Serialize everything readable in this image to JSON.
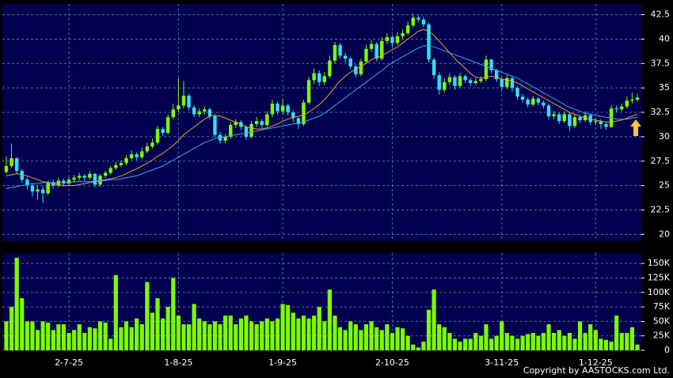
{
  "chart_data": [
    {
      "type": "candlestick",
      "categories": [
        null,
        null,
        null,
        null,
        null,
        null,
        null,
        null,
        null,
        null,
        null,
        null,
        "2-7-25",
        null,
        null,
        null,
        null,
        null,
        null,
        null,
        null,
        null,
        null,
        null,
        null,
        null,
        null,
        null,
        null,
        null,
        null,
        null,
        null,
        "1-8-25",
        null,
        null,
        null,
        null,
        null,
        null,
        null,
        null,
        null,
        null,
        null,
        null,
        null,
        null,
        null,
        null,
        null,
        null,
        null,
        "1-9-25",
        null,
        null,
        null,
        null,
        null,
        null,
        null,
        null,
        null,
        null,
        null,
        null,
        null,
        null,
        null,
        null,
        null,
        null,
        null,
        null,
        "2-10-25",
        null,
        null,
        null,
        null,
        null,
        null,
        null,
        null,
        null,
        null,
        null,
        null,
        null,
        null,
        null,
        null,
        null,
        null,
        null,
        null,
        "3-11-25",
        null,
        null,
        null,
        null,
        null,
        null,
        null,
        null,
        null,
        null,
        null,
        null,
        null,
        null,
        null,
        null,
        null,
        "1-12-25",
        null,
        null,
        null,
        null,
        null,
        null,
        null,
        null
      ],
      "open": [
        26.4,
        27.0,
        27.8,
        26.5,
        25.6,
        25.0,
        24.4,
        24.6,
        24.2,
        25.3,
        25.0,
        25.5,
        25.2,
        25.6,
        25.8,
        26.0,
        25.8,
        26.2,
        25.1,
        26.0,
        26.3,
        26.8,
        27.1,
        27.3,
        27.8,
        28.2,
        27.9,
        28.5,
        29.0,
        29.4,
        30.8,
        30.4,
        32.0,
        32.8,
        33.2,
        34.2,
        33.0,
        32.3,
        32.6,
        32.8,
        32.1,
        30.2,
        29.6,
        30.0,
        31.2,
        31.5,
        31.0,
        30.0,
        31.3,
        31.6,
        31.2,
        32.3,
        33.4,
        32.6,
        33.2,
        32.5,
        31.9,
        31.3,
        33.5,
        35.8,
        36.5,
        35.6,
        36.2,
        37.8,
        39.4,
        38.3,
        38.0,
        37.2,
        36.4,
        37.7,
        39.0,
        39.5,
        38.0,
        39.8,
        40.2,
        39.6,
        40.3,
        40.6,
        41.4,
        42.2,
        42.0,
        41.5,
        37.9,
        36.3,
        34.8,
        35.6,
        36.1,
        35.2,
        36.2,
        35.8,
        35.5,
        35.7,
        35.9,
        37.9,
        36.8,
        35.9,
        35.1,
        36.0,
        35.0,
        34.1,
        33.8,
        33.3,
        33.9,
        33.5,
        33.2,
        32.1,
        32.3,
        31.6,
        32.3,
        31.1,
        32.0,
        31.7,
        32.2,
        31.5,
        31.6,
        31.3,
        31.0,
        32.9,
        32.8,
        33.1,
        33.7,
        33.8
      ],
      "high": [
        28.0,
        29.3,
        27.9,
        26.7,
        25.9,
        25.2,
        25.0,
        24.9,
        25.5,
        25.6,
        25.8,
        25.7,
        25.9,
        26.1,
        26.3,
        26.2,
        26.5,
        26.3,
        26.2,
        26.5,
        27.0,
        27.4,
        27.6,
        28.1,
        28.6,
        28.4,
        28.9,
        29.4,
        29.8,
        31.1,
        31.0,
        32.3,
        33.4,
        36.0,
        35.7,
        34.4,
        33.2,
        32.9,
        33.1,
        33.0,
        32.3,
        30.5,
        30.3,
        31.5,
        31.8,
        31.7,
        31.2,
        31.6,
        32.0,
        31.8,
        32.6,
        33.8,
        33.6,
        33.9,
        33.4,
        32.7,
        32.0,
        33.8,
        36.1,
        37.0,
        36.8,
        36.6,
        38.3,
        39.7,
        39.6,
        38.6,
        38.2,
        37.4,
        38.0,
        39.4,
        39.9,
        39.7,
        40.2,
        40.6,
        40.4,
        40.7,
        41.0,
        41.8,
        42.6,
        42.5,
        42.3,
        41.7,
        38.1,
        36.6,
        36.0,
        36.5,
        36.3,
        36.5,
        36.4,
        36.0,
        36.0,
        36.2,
        38.3,
        38.0,
        37.0,
        36.1,
        36.3,
        36.2,
        35.2,
        34.4,
        34.0,
        34.2,
        34.1,
        33.7,
        33.4,
        32.6,
        32.5,
        32.6,
        32.5,
        32.3,
        32.2,
        32.6,
        32.4,
        31.9,
        31.8,
        31.5,
        33.2,
        33.2,
        33.4,
        34.1,
        34.5,
        34.4
      ],
      "low": [
        26.2,
        26.8,
        26.2,
        25.3,
        24.6,
        23.9,
        23.6,
        23.2,
        24.0,
        24.7,
        24.8,
        24.9,
        25.0,
        25.3,
        25.5,
        25.5,
        25.6,
        24.8,
        24.9,
        25.8,
        26.1,
        26.6,
        26.9,
        27.1,
        27.6,
        27.6,
        27.7,
        28.3,
        28.8,
        29.2,
        30.1,
        30.2,
        31.8,
        32.5,
        32.9,
        32.7,
        32.0,
        32.0,
        32.3,
        31.8,
        29.9,
        29.3,
        29.3,
        29.8,
        30.9,
        30.7,
        29.7,
        29.8,
        31.0,
        30.9,
        31.0,
        32.0,
        32.3,
        32.3,
        32.2,
        31.5,
        30.8,
        31.1,
        33.3,
        35.4,
        35.2,
        35.3,
        36.0,
        37.5,
        38.0,
        37.6,
        36.9,
        36.1,
        36.2,
        37.5,
        38.7,
        37.7,
        37.8,
        39.5,
        39.2,
        39.4,
        40.0,
        40.4,
        41.2,
        41.7,
        41.2,
        37.6,
        35.9,
        34.3,
        34.5,
        35.3,
        34.8,
        35.0,
        35.5,
        35.2,
        35.3,
        35.5,
        35.7,
        36.5,
        35.6,
        34.8,
        34.9,
        34.6,
        33.8,
        33.5,
        33.0,
        33.1,
        33.2,
        32.9,
        31.8,
        31.8,
        31.3,
        31.4,
        30.6,
        30.9,
        31.4,
        31.5,
        31.2,
        31.2,
        30.8,
        30.7,
        30.9,
        32.5,
        32.6,
        32.9,
        33.4,
        33.6
      ],
      "close": [
        27.0,
        27.8,
        26.5,
        25.6,
        25.0,
        24.4,
        24.6,
        24.2,
        25.3,
        25.0,
        25.5,
        25.2,
        25.6,
        25.8,
        26.0,
        25.8,
        26.2,
        25.1,
        26.0,
        26.3,
        26.8,
        27.1,
        27.3,
        27.8,
        28.2,
        27.9,
        28.5,
        29.0,
        29.4,
        30.8,
        30.4,
        32.0,
        32.8,
        33.2,
        34.2,
        33.0,
        32.3,
        32.6,
        32.8,
        32.1,
        30.2,
        29.6,
        30.0,
        31.2,
        31.5,
        31.0,
        30.0,
        31.3,
        31.6,
        31.2,
        32.3,
        33.4,
        32.6,
        33.2,
        32.5,
        31.9,
        31.3,
        33.5,
        35.8,
        36.5,
        35.6,
        36.2,
        37.8,
        39.4,
        38.3,
        38.0,
        37.2,
        36.4,
        37.7,
        39.0,
        39.5,
        38.0,
        39.8,
        40.2,
        39.6,
        40.3,
        40.6,
        41.4,
        42.2,
        42.0,
        41.5,
        37.9,
        36.3,
        34.8,
        35.6,
        36.1,
        35.2,
        36.2,
        35.8,
        35.5,
        35.7,
        35.9,
        37.9,
        36.8,
        35.9,
        35.1,
        36.0,
        35.0,
        34.1,
        33.8,
        33.3,
        33.9,
        33.5,
        33.2,
        32.1,
        32.3,
        31.6,
        32.3,
        31.1,
        32.0,
        31.7,
        32.2,
        31.5,
        31.6,
        31.3,
        31.0,
        32.9,
        32.8,
        33.1,
        33.7,
        33.8,
        34.0
      ],
      "up_color": "#7cfc00",
      "down_color": "#33e0f0",
      "series": [
        {
          "color": "#f0a030",
          "values": [
            26.0,
            26.1,
            26.2,
            26.1,
            26.0,
            25.8,
            25.6,
            25.4,
            25.3,
            25.2,
            25.1,
            25.0,
            25.0,
            25.0,
            25.1,
            25.2,
            25.3,
            25.4,
            25.5,
            25.6,
            25.7,
            25.8,
            26.0,
            26.2,
            26.5,
            26.7,
            27.0,
            27.3,
            27.6,
            28.0,
            28.3,
            28.7,
            29.1,
            29.6,
            30.2,
            30.6,
            31.0,
            31.4,
            31.8,
            32.1,
            32.2,
            32.1,
            31.9,
            31.7,
            31.5,
            31.3,
            31.0,
            30.9,
            30.8,
            30.8,
            30.9,
            31.1,
            31.3,
            31.6,
            31.8,
            32.0,
            32.1,
            32.2,
            32.5,
            32.9,
            33.3,
            33.8,
            34.4,
            35.1,
            35.7,
            36.2,
            36.6,
            36.9,
            37.2,
            37.5,
            37.9,
            38.1,
            38.3,
            38.6,
            38.9,
            39.2,
            39.6,
            40.0,
            40.4,
            40.8,
            41.0,
            40.8,
            40.4,
            39.8,
            39.2,
            38.6,
            38.0,
            37.5,
            37.0,
            36.5,
            36.1,
            36.0,
            36.1,
            36.2,
            36.1,
            35.9,
            35.8,
            35.7,
            35.5,
            35.2,
            34.9,
            34.6,
            34.3,
            34.0,
            33.7,
            33.4,
            33.1,
            32.8,
            32.5,
            32.3,
            32.1,
            31.9,
            31.8,
            31.7,
            31.6,
            31.5,
            31.5,
            31.6,
            31.7,
            31.9,
            32.1,
            32.3
          ]
        },
        {
          "color": "#3fa8f0",
          "values": [
            24.7,
            24.8,
            24.9,
            25.0,
            25.1,
            25.2,
            25.2,
            25.3,
            25.3,
            25.3,
            25.3,
            25.3,
            25.3,
            25.4,
            25.4,
            25.4,
            25.4,
            25.5,
            25.5,
            25.5,
            25.6,
            25.6,
            25.7,
            25.8,
            25.9,
            26.0,
            26.2,
            26.4,
            26.6,
            26.8,
            27.0,
            27.3,
            27.6,
            27.9,
            28.2,
            28.5,
            28.8,
            29.1,
            29.4,
            29.6,
            29.8,
            29.9,
            30.0,
            30.1,
            30.2,
            30.3,
            30.4,
            30.5,
            30.6,
            30.7,
            30.8,
            30.9,
            31.0,
            31.1,
            31.2,
            31.3,
            31.4,
            31.5,
            31.7,
            31.9,
            32.1,
            32.4,
            32.8,
            33.2,
            33.6,
            34.0,
            34.4,
            34.8,
            35.2,
            35.6,
            36.0,
            36.4,
            36.8,
            37.2,
            37.6,
            37.9,
            38.2,
            38.5,
            38.8,
            39.1,
            39.3,
            39.3,
            39.2,
            39.0,
            38.8,
            38.6,
            38.4,
            38.2,
            38.0,
            37.8,
            37.6,
            37.4,
            37.2,
            37.0,
            36.8,
            36.6,
            36.4,
            36.2,
            36.0,
            35.7,
            35.4,
            35.1,
            34.8,
            34.5,
            34.2,
            33.9,
            33.6,
            33.3,
            33.0,
            32.8,
            32.6,
            32.4,
            32.3,
            32.2,
            32.1,
            32.0,
            31.9,
            31.8,
            31.8,
            31.8,
            31.9,
            32.0
          ]
        }
      ],
      "ylim": [
        19.3,
        43.6
      ],
      "yticks": [
        20,
        22.5,
        25,
        27.5,
        30,
        32.5,
        35,
        37.5,
        40,
        42.5
      ],
      "grid": true
    },
    {
      "type": "bar",
      "values": [
        50000,
        75000,
        160000,
        90000,
        50000,
        50000,
        35000,
        50000,
        48000,
        35000,
        45000,
        45000,
        30000,
        35000,
        45000,
        30000,
        40000,
        38000,
        50000,
        48000,
        20000,
        130000,
        40000,
        50000,
        40000,
        55000,
        45000,
        118000,
        65000,
        90000,
        55000,
        75000,
        125000,
        60000,
        45000,
        45000,
        80000,
        55000,
        50000,
        45000,
        50000,
        45000,
        60000,
        60000,
        45000,
        55000,
        60000,
        50000,
        45000,
        50000,
        55000,
        50000,
        55000,
        80000,
        78000,
        65000,
        55000,
        60000,
        55000,
        60000,
        75000,
        50000,
        105000,
        60000,
        40000,
        35000,
        50000,
        45000,
        35000,
        45000,
        50000,
        40000,
        35000,
        45000,
        30000,
        40000,
        38000,
        25000,
        10000,
        5000,
        15000,
        70000,
        105000,
        45000,
        40000,
        30000,
        20000,
        15000,
        20000,
        20000,
        30000,
        25000,
        45000,
        20000,
        25000,
        50000,
        30000,
        25000,
        20000,
        25000,
        28000,
        30000,
        25000,
        30000,
        45000,
        30000,
        35000,
        25000,
        30000,
        20000,
        50000,
        30000,
        45000,
        35000,
        20000,
        18000,
        15000,
        60000,
        30000,
        30000,
        40000,
        10000
      ],
      "color": "#7cfc00",
      "ylim": [
        0,
        168000
      ],
      "yticks": [
        0,
        {
          "value": 25000,
          "label": "25K"
        },
        {
          "value": 50000,
          "label": "50K"
        },
        {
          "value": 75000,
          "label": "75K"
        },
        {
          "value": 100000,
          "label": "100K"
        },
        {
          "value": 125000,
          "label": "125K"
        },
        {
          "value": 150000,
          "label": "150K"
        }
      ],
      "grid": true
    }
  ],
  "copyright": "Copyright by AASTOCKS.com Ltd."
}
